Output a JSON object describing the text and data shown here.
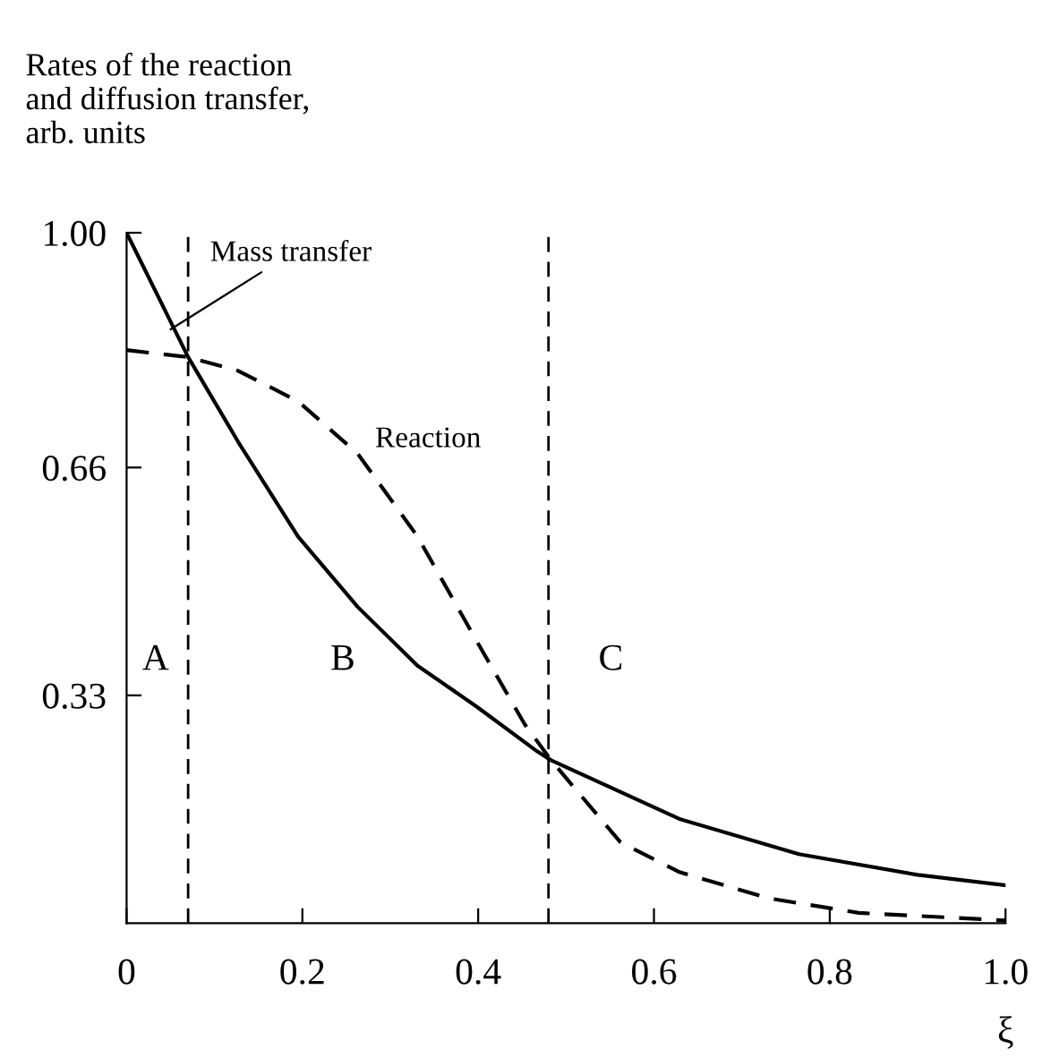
{
  "chart_data": {
    "type": "line",
    "ylabel": "Rates of the reaction\nand diffusion transfer,\narb. units",
    "xlabel": "ξ",
    "xlim": [
      0,
      1
    ],
    "ylim": [
      0,
      1
    ],
    "xticks": [
      0,
      0.2,
      0.4,
      0.6,
      0.8,
      {
        "value": 1,
        "label": "1.0"
      }
    ],
    "yticks": [
      0.33,
      0.66,
      {
        "value": 1,
        "label": "1.00"
      }
    ],
    "grid": false,
    "legend": false,
    "series": [
      {
        "name": "Mass transfer",
        "color": "#000000",
        "line_style": "solid",
        "x": [
          0,
          0.07,
          0.127,
          0.195,
          0.263,
          0.331,
          0.399,
          0.467,
          0.483,
          0.629,
          0.765,
          0.9,
          1.0
        ],
        "values": [
          1.0,
          0.82,
          0.697,
          0.56,
          0.458,
          0.373,
          0.313,
          0.249,
          0.236,
          0.151,
          0.1,
          0.07,
          0.055
        ]
      },
      {
        "name": "Reaction",
        "color": "#000000",
        "line_style": "dashed",
        "x": [
          0,
          0.07,
          0.127,
          0.195,
          0.263,
          0.331,
          0.399,
          0.453,
          0.483,
          0.562,
          0.629,
          0.731,
          0.833,
          1.0
        ],
        "values": [
          0.83,
          0.82,
          0.8,
          0.756,
          0.68,
          0.56,
          0.407,
          0.288,
          0.236,
          0.117,
          0.074,
          0.036,
          0.015,
          0.004
        ]
      }
    ],
    "ref_lines": [
      {
        "axis": "x",
        "value": 0.07,
        "color": "#000000",
        "line_style": "dashed"
      },
      {
        "axis": "x",
        "value": 0.48,
        "color": "#000000",
        "line_style": "dashed"
      }
    ],
    "annotations": [
      "A",
      "B",
      "C"
    ]
  }
}
